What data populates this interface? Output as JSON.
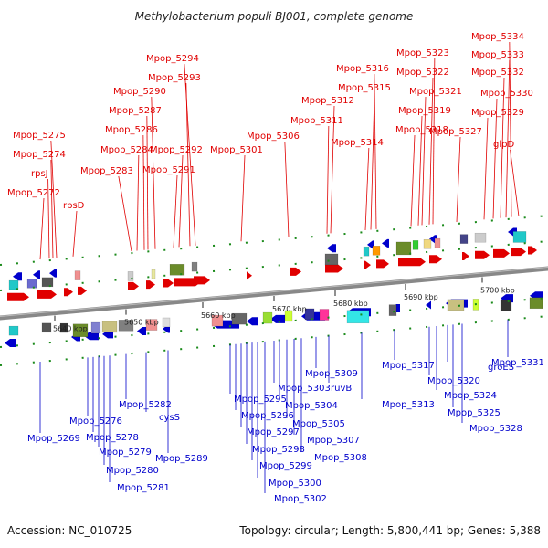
{
  "title": "Methylobacterium populi BJ001, complete genome",
  "footer": {
    "accession": "Accession: NC_010725",
    "summary": "Topology: circular; Length: 5,800,441 bp; Genes: 5,388"
  },
  "colors": {
    "plus_strand": "#e00000",
    "minus_strand": "#0000cc",
    "axis": "#888888",
    "minor_tick": "#1a8a1a"
  },
  "tick_labels": [
    "5640 kbp",
    "5650 kbp",
    "5660 kbp",
    "5670 kbp",
    "5680 kbp",
    "5690 kbp",
    "5700 kbp"
  ],
  "genes_top": [
    "Mpop_5272",
    "rpsJ",
    "Mpop_5274",
    "Mpop_5275",
    "rpsD",
    "Mpop_5283",
    "Mpop_5284",
    "Mpop_5286",
    "Mpop_5287",
    "Mpop_5290",
    "Mpop_5291",
    "Mpop_5292",
    "Mpop_5293",
    "Mpop_5294",
    "Mpop_5301",
    "Mpop_5306",
    "Mpop_5311",
    "Mpop_5312",
    "Mpop_5314",
    "Mpop_5315",
    "Mpop_5316",
    "Mpop_5318",
    "Mpop_5319",
    "Mpop_5321",
    "Mpop_5322",
    "Mpop_5323",
    "Mpop_5327",
    "Mpop_5329",
    "Mpop_5330",
    "Mpop_5332",
    "Mpop_5333",
    "Mpop_5334",
    "glpD"
  ],
  "genes_bottom": [
    "Mpop_5269",
    "Mpop_5276",
    "Mpop_5278",
    "Mpop_5279",
    "Mpop_5280",
    "Mpop_5281",
    "Mpop_5282",
    "cysS",
    "Mpop_5289",
    "Mpop_5295",
    "Mpop_5296",
    "Mpop_5297",
    "Mpop_5298",
    "Mpop_5299",
    "Mpop_5300",
    "Mpop_5302",
    "Mpop_5303",
    "Mpop_5304",
    "Mpop_5305",
    "Mpop_5307",
    "Mpop_5308",
    "Mpop_5309",
    "ruvB",
    "Mpop_5313",
    "Mpop_5317",
    "Mpop_5320",
    "Mpop_5324",
    "groES",
    "Mpop_5325",
    "Mpop_5328",
    "Mpop_5331"
  ]
}
